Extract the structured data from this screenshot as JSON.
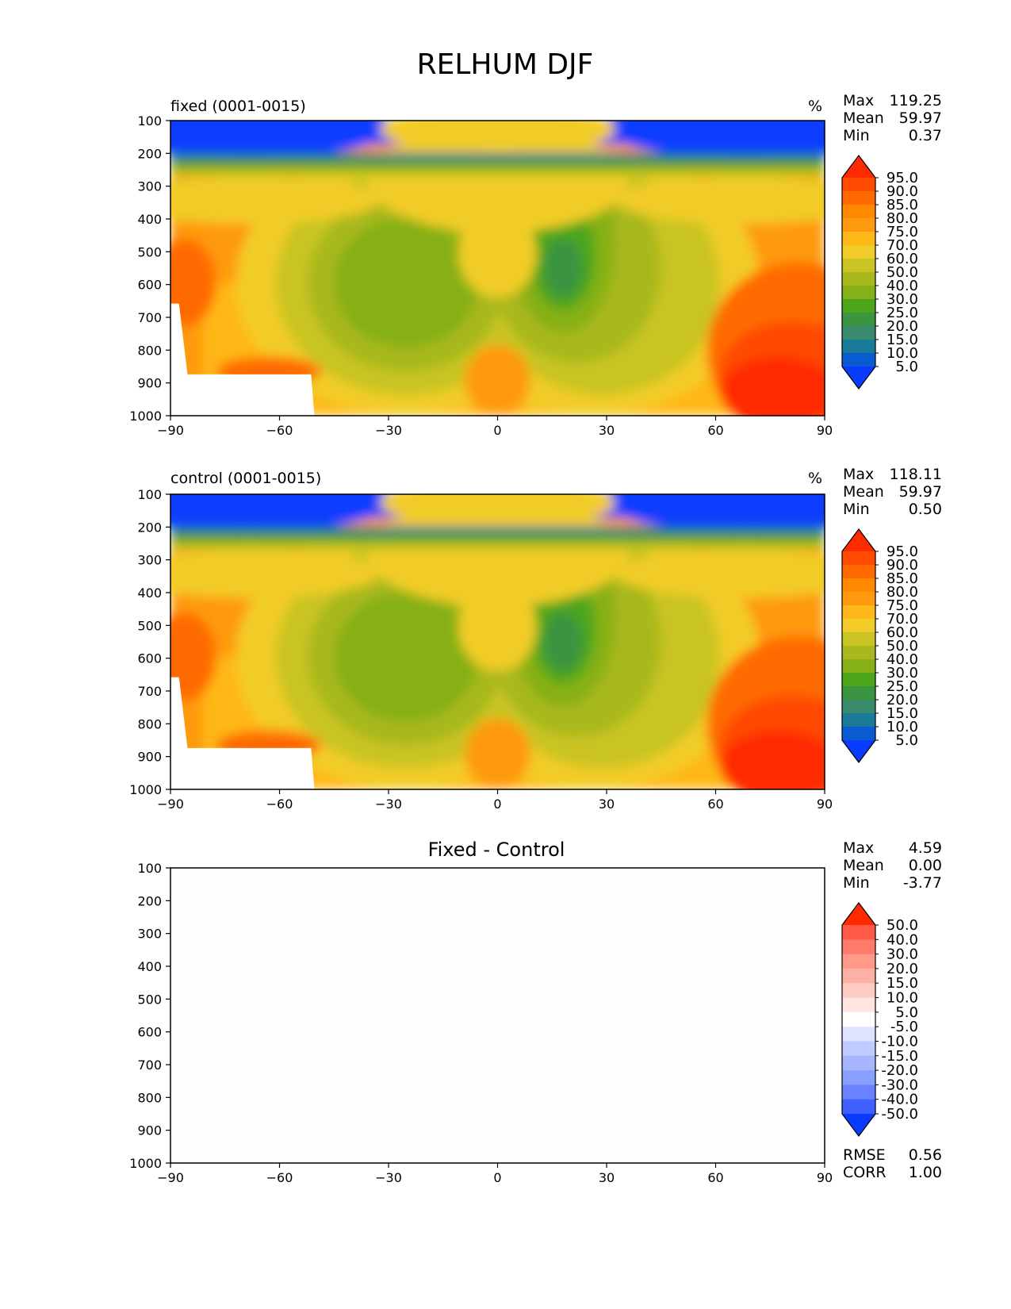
{
  "title": "RELHUM DJF",
  "chart_data": [
    {
      "type": "heatmap",
      "panel_label": "fixed (0001-0015)",
      "units": "%",
      "x_ticks": [
        "−90",
        "−60",
        "−30",
        "0",
        "30",
        "60",
        "90"
      ],
      "y_ticks": [
        "100",
        "200",
        "300",
        "400",
        "500",
        "600",
        "700",
        "800",
        "900",
        "1000"
      ],
      "xlim": [
        -90,
        90
      ],
      "ylim": [
        1000,
        100
      ],
      "stats": [
        {
          "label": "Max",
          "value": "119.25"
        },
        {
          "label": "Mean",
          "value": "59.97"
        },
        {
          "label": "Min",
          "value": "0.37"
        }
      ],
      "colorbar": {
        "levels": [
          "95.0",
          "90.0",
          "85.0",
          "80.0",
          "75.0",
          "70.0",
          "60.0",
          "50.0",
          "40.0",
          "30.0",
          "25.0",
          "20.0",
          "15.0",
          "10.0",
          "5.0"
        ],
        "colors": [
          "#ff2a00",
          "#ff4a00",
          "#ff6a00",
          "#ff8a00",
          "#ff9a10",
          "#ffb818",
          "#f2cc28",
          "#c9c424",
          "#a8b81e",
          "#86b018",
          "#4ea61c",
          "#3a9440",
          "#3a8a6e",
          "#1a7a9a",
          "#0a5ad2",
          "#0a3cff"
        ]
      }
    },
    {
      "type": "heatmap",
      "panel_label": "control (0001-0015)",
      "units": "%",
      "x_ticks": [
        "−90",
        "−60",
        "−30",
        "0",
        "30",
        "60",
        "90"
      ],
      "y_ticks": [
        "100",
        "200",
        "300",
        "400",
        "500",
        "600",
        "700",
        "800",
        "900",
        "1000"
      ],
      "xlim": [
        -90,
        90
      ],
      "ylim": [
        1000,
        100
      ],
      "stats": [
        {
          "label": "Max",
          "value": "118.11"
        },
        {
          "label": "Mean",
          "value": "59.97"
        },
        {
          "label": "Min",
          "value": "0.50"
        }
      ],
      "colorbar": {
        "levels": [
          "95.0",
          "90.0",
          "85.0",
          "80.0",
          "75.0",
          "70.0",
          "60.0",
          "50.0",
          "40.0",
          "30.0",
          "25.0",
          "20.0",
          "15.0",
          "10.0",
          "5.0"
        ],
        "colors": [
          "#ff2a00",
          "#ff4a00",
          "#ff6a00",
          "#ff8a00",
          "#ff9a10",
          "#ffb818",
          "#f2cc28",
          "#c9c424",
          "#a8b81e",
          "#86b018",
          "#4ea61c",
          "#3a9440",
          "#3a8a6e",
          "#1a7a9a",
          "#0a5ad2",
          "#0a3cff"
        ]
      }
    },
    {
      "type": "heatmap",
      "panel_title": "Fixed - Control",
      "x_ticks": [
        "−90",
        "−60",
        "−30",
        "0",
        "30",
        "60",
        "90"
      ],
      "y_ticks": [
        "100",
        "200",
        "300",
        "400",
        "500",
        "600",
        "700",
        "800",
        "900",
        "1000"
      ],
      "xlim": [
        -90,
        90
      ],
      "ylim": [
        1000,
        100
      ],
      "stats": [
        {
          "label": "Max",
          "value": "4.59"
        },
        {
          "label": "Mean",
          "value": "0.00"
        },
        {
          "label": "Min",
          "value": "-3.77"
        }
      ],
      "extra_stats": [
        {
          "label": "RMSE",
          "value": "0.56"
        },
        {
          "label": "CORR",
          "value": "1.00"
        }
      ],
      "colorbar": {
        "levels": [
          "50.0",
          "40.0",
          "30.0",
          "20.0",
          "15.0",
          "10.0",
          "5.0",
          "-5.0",
          "-10.0",
          "-15.0",
          "-20.0",
          "-30.0",
          "-40.0",
          "-50.0"
        ],
        "colors": [
          "#ff2a00",
          "#ff5a48",
          "#ff7a68",
          "#ff9a88",
          "#ffb0a4",
          "#ffccc4",
          "#ffe4e0",
          "#ffffff",
          "#dce4ff",
          "#c0ccff",
          "#a6b6ff",
          "#8aa0ff",
          "#6a82ff",
          "#4060ff",
          "#0a3cff"
        ]
      }
    }
  ]
}
